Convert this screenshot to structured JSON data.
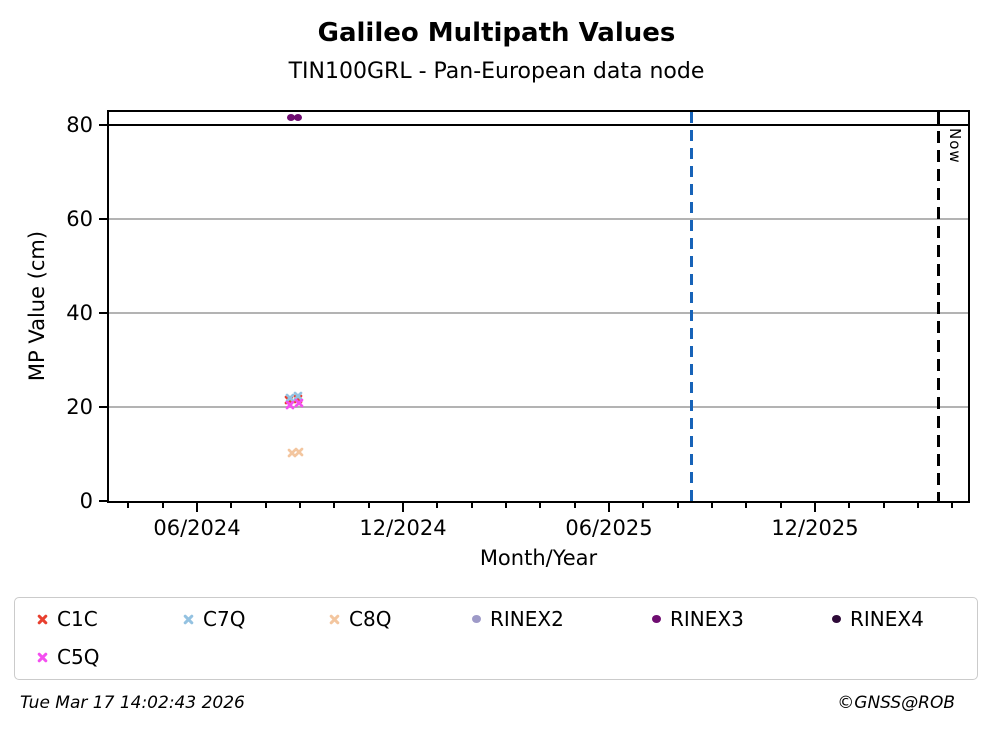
{
  "title": "Galileo Multipath Values",
  "subtitle": "TIN100GRL - Pan-European data node",
  "footer": {
    "timestamp": "Tue Mar 17 14:02:43 2026",
    "credit": "©GNSS@ROB"
  },
  "colors": {
    "grid": "#b3b3b3",
    "axis": "#000000",
    "threshold_line": "#000000",
    "release_vline": "#1763b8",
    "now_vline": "#000000"
  },
  "chart_data": {
    "type": "scatter",
    "title": "Galileo Multipath Values",
    "subtitle": "TIN100GRL - Pan-European data node",
    "xlabel": "Month/Year",
    "ylabel": "MP Value (cm)",
    "grid": true,
    "ylim": [
      0,
      83
    ],
    "yticks": [
      0,
      20,
      40,
      60,
      80
    ],
    "x_axis": {
      "unit": "months since 2024-06-01",
      "t_min": -2,
      "t_max": 22,
      "major_ticks": [
        {
          "t": 0,
          "label": "06/2024"
        },
        {
          "t": 6,
          "label": "12/2024"
        },
        {
          "t": 12,
          "label": "06/2025"
        },
        {
          "t": 18,
          "label": "12/2025"
        }
      ],
      "minor_tick_every_month": true
    },
    "hline": {
      "y": 80,
      "color": "#000000",
      "style": "solid"
    },
    "vlines": [
      {
        "t": 14.4,
        "date_approx": "08/2025",
        "color": "#1763b8",
        "style": "dashed",
        "label": ""
      },
      {
        "t": 21.6,
        "date_approx": "03/2026",
        "color": "#000000",
        "style": "dashed",
        "label": "Now"
      }
    ],
    "series": [
      {
        "name": "C1C",
        "marker": "x",
        "color": "#e8402f",
        "points": [
          {
            "t": 2.68,
            "y": 21.5
          },
          {
            "t": 2.93,
            "y": 21.6
          }
        ]
      },
      {
        "name": "C7Q",
        "marker": "x",
        "color": "#94c2e1",
        "points": [
          {
            "t": 2.7,
            "y": 22.0
          },
          {
            "t": 2.95,
            "y": 22.4
          }
        ]
      },
      {
        "name": "C8Q",
        "marker": "x",
        "color": "#f3c69f",
        "points": [
          {
            "t": 2.77,
            "y": 10.2
          },
          {
            "t": 2.98,
            "y": 10.5
          }
        ]
      },
      {
        "name": "RINEX2",
        "marker": "dot",
        "color": "#9e9ac8",
        "points": []
      },
      {
        "name": "RINEX3",
        "marker": "dot",
        "color": "#6f0d71",
        "points": [
          {
            "t": 2.74,
            "y": 81.5
          },
          {
            "t": 2.94,
            "y": 81.6
          }
        ]
      },
      {
        "name": "RINEX4",
        "marker": "dot",
        "color": "#2e0a38",
        "points": []
      },
      {
        "name": "C5Q",
        "marker": "x",
        "color": "#f44ff0",
        "points": [
          {
            "t": 2.72,
            "y": 20.4
          },
          {
            "t": 2.96,
            "y": 20.9
          }
        ]
      }
    ],
    "legend_position": "bottom"
  }
}
